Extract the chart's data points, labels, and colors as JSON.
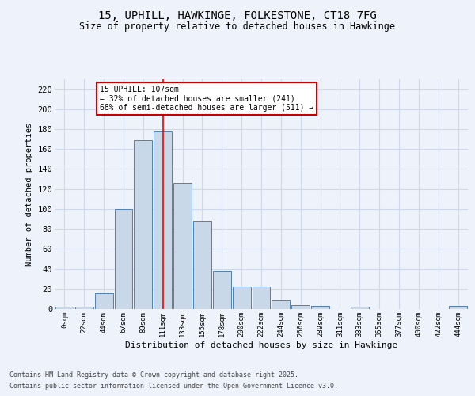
{
  "title_line1": "15, UPHILL, HAWKINGE, FOLKESTONE, CT18 7FG",
  "title_line2": "Size of property relative to detached houses in Hawkinge",
  "xlabel": "Distribution of detached houses by size in Hawkinge",
  "ylabel": "Number of detached properties",
  "bin_labels": [
    "0sqm",
    "22sqm",
    "44sqm",
    "67sqm",
    "89sqm",
    "111sqm",
    "133sqm",
    "155sqm",
    "178sqm",
    "200sqm",
    "222sqm",
    "244sqm",
    "266sqm",
    "289sqm",
    "311sqm",
    "333sqm",
    "355sqm",
    "377sqm",
    "400sqm",
    "422sqm",
    "444sqm"
  ],
  "bar_values": [
    2,
    2,
    16,
    100,
    169,
    178,
    126,
    88,
    38,
    22,
    22,
    9,
    4,
    3,
    0,
    2,
    0,
    0,
    0,
    0,
    3
  ],
  "bar_color": "#c8d8e8",
  "bar_edge_color": "#5080b0",
  "background_color": "#eef2fa",
  "grid_color": "#d0d8ee",
  "red_line_x": 5,
  "annotation_text": "15 UPHILL: 107sqm\n← 32% of detached houses are smaller (241)\n68% of semi-detached houses are larger (511) →",
  "annotation_box_color": "#ffffff",
  "annotation_border_color": "#cc0000",
  "ylim": [
    0,
    230
  ],
  "yticks": [
    0,
    20,
    40,
    60,
    80,
    100,
    120,
    140,
    160,
    180,
    200,
    220
  ],
  "footer_line1": "Contains HM Land Registry data © Crown copyright and database right 2025.",
  "footer_line2": "Contains public sector information licensed under the Open Government Licence v3.0."
}
